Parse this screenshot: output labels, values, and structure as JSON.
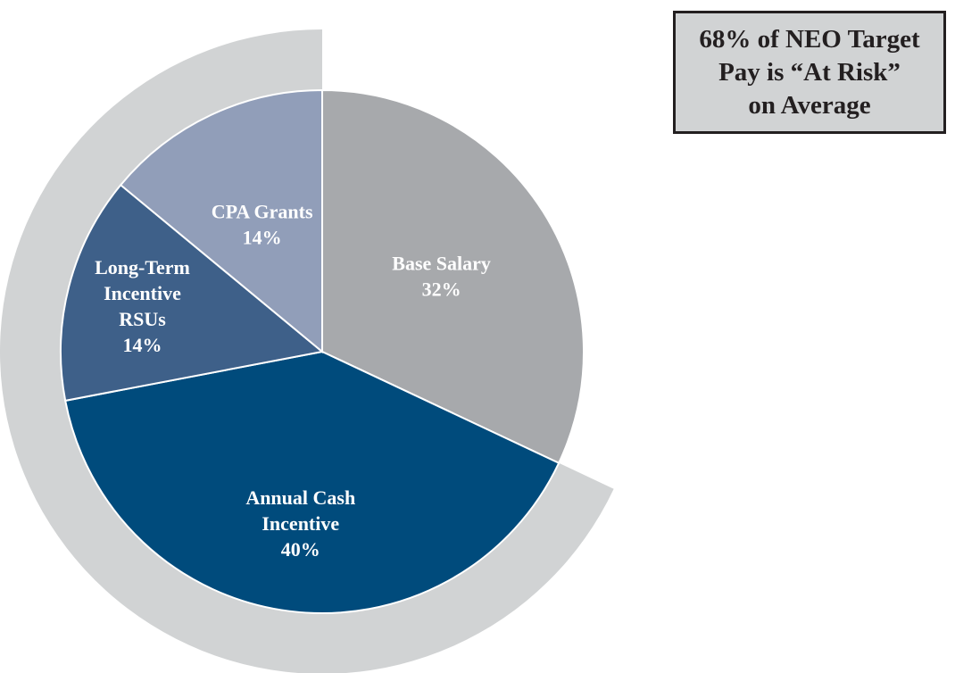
{
  "chart_data": {
    "type": "pie",
    "title": "",
    "slices": [
      {
        "key": "base",
        "label_lines": [
          "Base Salary"
        ],
        "value_label": "32%",
        "value": 32,
        "color": "#a7a9ac"
      },
      {
        "key": "annual",
        "label_lines": [
          "Annual Cash",
          "Incentive"
        ],
        "value_label": "40%",
        "value": 40,
        "color": "#004b7c"
      },
      {
        "key": "ltrsu",
        "label_lines": [
          "Long-Term",
          "Incentive",
          "RSUs"
        ],
        "value_label": "14%",
        "value": 14,
        "color": "#3e6089"
      },
      {
        "key": "cpa",
        "label_lines": [
          "CPA Grants"
        ],
        "value_label": "14%",
        "value": 14,
        "color": "#919eb9"
      }
    ],
    "at_risk_ring": {
      "value": 68,
      "color": "#d1d3d4",
      "covers": [
        "annual",
        "ltrsu",
        "cpa"
      ]
    }
  },
  "callout": {
    "lines": [
      "68% of NEO Target",
      "Pay is “At Risk”",
      "on Average"
    ]
  }
}
